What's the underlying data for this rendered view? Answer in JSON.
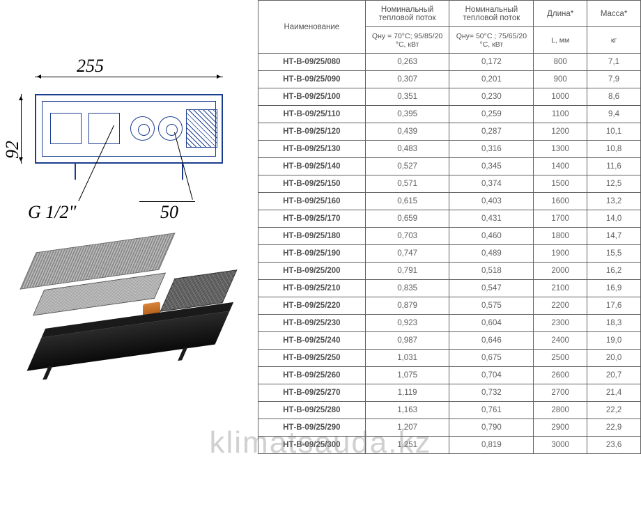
{
  "diagram": {
    "dim_width": "255",
    "dim_height": "92",
    "dim_thread": "G 1/2\"",
    "dim_offset": "50",
    "line_color": "#1a3d8f",
    "font_style": "italic",
    "font_size_pt": 20
  },
  "table": {
    "header_row1": {
      "col1": "Наименование",
      "col2": "Номинальный тепловой поток",
      "col3": "Номинальный тепловой поток",
      "col4": "Длина*",
      "col5": "Масса*"
    },
    "header_row2": {
      "col2": "Qну = 70°С; 95/85/20 °С, кВт",
      "col3": "Qну= 50°С ; 75/65/20 °С, кВт",
      "col4": "L, мм",
      "col5": "кг"
    },
    "columns": [
      "Наименование",
      "Qну70",
      "Qну50",
      "L",
      "Масса"
    ],
    "col_widths_pct": [
      28,
      22,
      22,
      14,
      14
    ],
    "border_color": "#606060",
    "text_color": "#606060",
    "font_size_pt": 9,
    "rows": [
      {
        "name": "НТ-В-09/25/080",
        "q70": "0,263",
        "q50": "0,172",
        "l": "800",
        "m": "7,1"
      },
      {
        "name": "НТ-В-09/25/090",
        "q70": "0,307",
        "q50": "0,201",
        "l": "900",
        "m": "7,9"
      },
      {
        "name": "НТ-В-09/25/100",
        "q70": "0,351",
        "q50": "0,230",
        "l": "1000",
        "m": "8,6"
      },
      {
        "name": "НТ-В-09/25/110",
        "q70": "0,395",
        "q50": "0,259",
        "l": "1100",
        "m": "9,4"
      },
      {
        "name": "НТ-В-09/25/120",
        "q70": "0,439",
        "q50": "0,287",
        "l": "1200",
        "m": "10,1"
      },
      {
        "name": "НТ-В-09/25/130",
        "q70": "0,483",
        "q50": "0,316",
        "l": "1300",
        "m": "10,8"
      },
      {
        "name": "НТ-В-09/25/140",
        "q70": "0,527",
        "q50": "0,345",
        "l": "1400",
        "m": "11,6"
      },
      {
        "name": "НТ-В-09/25/150",
        "q70": "0,571",
        "q50": "0,374",
        "l": "1500",
        "m": "12,5"
      },
      {
        "name": "НТ-В-09/25/160",
        "q70": "0,615",
        "q50": "0,403",
        "l": "1600",
        "m": "13,2"
      },
      {
        "name": "НТ-В-09/25/170",
        "q70": "0,659",
        "q50": "0,431",
        "l": "1700",
        "m": "14,0"
      },
      {
        "name": "НТ-В-09/25/180",
        "q70": "0,703",
        "q50": "0,460",
        "l": "1800",
        "m": "14,7"
      },
      {
        "name": "НТ-В-09/25/190",
        "q70": "0,747",
        "q50": "0,489",
        "l": "1900",
        "m": "15,5"
      },
      {
        "name": "НТ-В-09/25/200",
        "q70": "0,791",
        "q50": "0,518",
        "l": "2000",
        "m": "16,2"
      },
      {
        "name": "НТ-В-09/25/210",
        "q70": "0,835",
        "q50": "0,547",
        "l": "2100",
        "m": "16,9"
      },
      {
        "name": "НТ-В-09/25/220",
        "q70": "0,879",
        "q50": "0,575",
        "l": "2200",
        "m": "17,6"
      },
      {
        "name": "НТ-В-09/25/230",
        "q70": "0,923",
        "q50": "0,604",
        "l": "2300",
        "m": "18,3"
      },
      {
        "name": "НТ-В-09/25/240",
        "q70": "0,987",
        "q50": "0,646",
        "l": "2400",
        "m": "19,0"
      },
      {
        "name": "НТ-В-09/25/250",
        "q70": "1,031",
        "q50": "0,675",
        "l": "2500",
        "m": "20,0"
      },
      {
        "name": "НТ-В-09/25/260",
        "q70": "1,075",
        "q50": "0,704",
        "l": "2600",
        "m": "20,7"
      },
      {
        "name": "НТ-В-09/25/270",
        "q70": "1,119",
        "q50": "0,732",
        "l": "2700",
        "m": "21,4"
      },
      {
        "name": "НТ-В-09/25/280",
        "q70": "1,163",
        "q50": "0,761",
        "l": "2800",
        "m": "22,2"
      },
      {
        "name": "НТ-В-09/25/290",
        "q70": "1,207",
        "q50": "0,790",
        "l": "2900",
        "m": "22,9"
      },
      {
        "name": "НТ-В-09/25/300",
        "q70": "1,251",
        "q50": "0,819",
        "l": "3000",
        "m": "23,6"
      }
    ]
  },
  "watermark": {
    "text": "klimatsauda.kz",
    "color": "rgba(120,120,120,0.35)",
    "font_size_pt": 33
  }
}
